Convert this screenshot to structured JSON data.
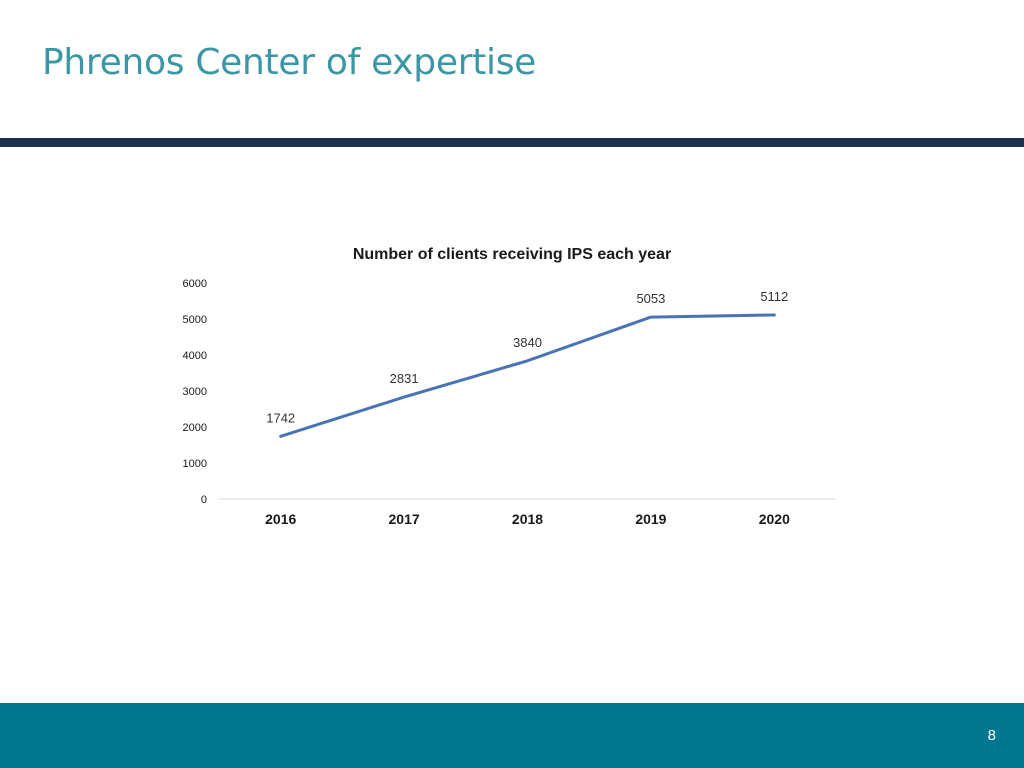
{
  "slide": {
    "title": "Phrenos Center of expertise",
    "page_number": "8"
  },
  "colors": {
    "title": "#3b96a6",
    "header_bar": "#1f2f4f",
    "footer_bar": "#00778f",
    "series_line": "#4a73b5"
  },
  "chart_data": {
    "type": "line",
    "title": "Number of clients receiving IPS each year",
    "categories": [
      "2016",
      "2017",
      "2018",
      "2019",
      "2020"
    ],
    "series": [
      {
        "values": [
          1742,
          2831,
          3840,
          5053,
          5112
        ]
      }
    ],
    "data_labels": [
      "1742",
      "2831",
      "3840",
      "5053",
      "5112"
    ],
    "y_ticks": [
      "0",
      "1000",
      "2000",
      "3000",
      "4000",
      "5000",
      "6000"
    ],
    "ylim": [
      0,
      6000
    ],
    "grid": false,
    "legend": "none"
  }
}
